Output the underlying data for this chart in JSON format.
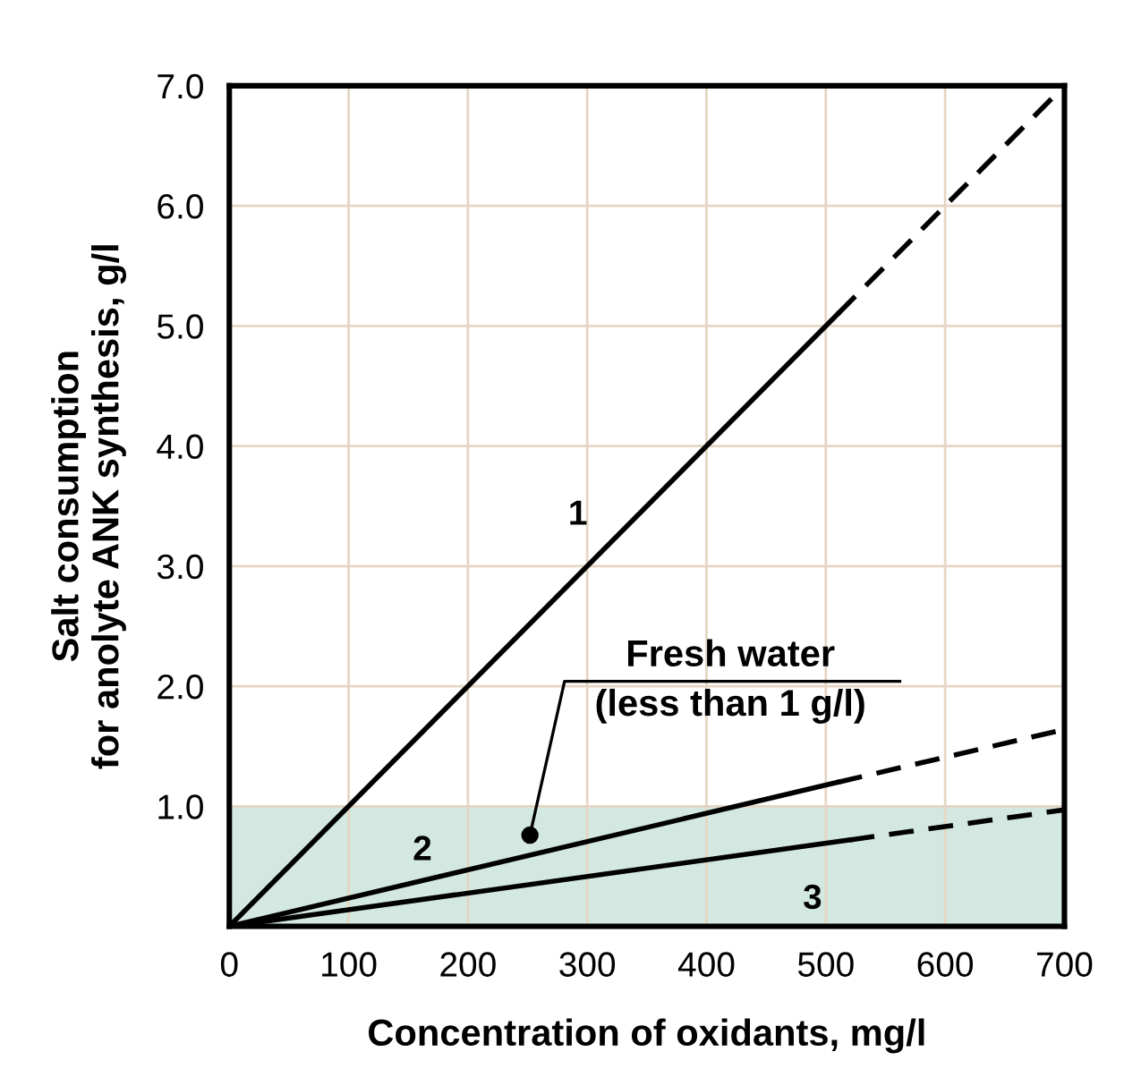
{
  "chart_data": {
    "type": "line",
    "xlabel": "Concentration of oxidants, mg/l",
    "ylabel": "Salt consumption\nfor anolyte ANK synthesis, g/l",
    "xlim": [
      0,
      700
    ],
    "ylim": [
      0,
      7
    ],
    "xticks": [
      0,
      100,
      200,
      300,
      400,
      500,
      600,
      700
    ],
    "yticks": [
      {
        "value": 1,
        "label": "1.0"
      },
      {
        "value": 2,
        "label": "2.0"
      },
      {
        "value": 3,
        "label": "3.0"
      },
      {
        "value": 4,
        "label": "4.0"
      },
      {
        "value": 5,
        "label": "5.0"
      },
      {
        "value": 6,
        "label": "6.0"
      },
      {
        "value": 7,
        "label": "7.0"
      }
    ],
    "grid": true,
    "marker": "none",
    "series": [
      {
        "name": "1",
        "x": [
          0,
          510
        ],
        "values": [
          0,
          5.1
        ],
        "color": "#000000",
        "line_style": "solid"
      },
      {
        "x": [
          510,
          700
        ],
        "values": [
          5.1,
          7.0
        ],
        "color": "#000000",
        "line_style": "dashed"
      },
      {
        "name": "2",
        "x": [
          0,
          510
        ],
        "values": [
          0,
          1.2
        ],
        "color": "#000000",
        "line_style": "solid"
      },
      {
        "x": [
          510,
          700
        ],
        "values": [
          1.2,
          1.64
        ],
        "color": "#000000",
        "line_style": "dashed"
      },
      {
        "name": "3",
        "x": [
          0,
          520
        ],
        "values": [
          0,
          0.72
        ],
        "color": "#000000",
        "line_style": "solid"
      },
      {
        "x": [
          520,
          700
        ],
        "values": [
          0.72,
          0.97
        ],
        "color": "#000000",
        "line_style": "dashed"
      }
    ],
    "bands": [
      {
        "axis": "y",
        "from": 0,
        "to": 1,
        "color": "#d3e8e0"
      }
    ],
    "annotations": [
      {
        "text": "Fresh water\n(less than 1 g/l)",
        "x": 252,
        "y": 0.76
      }
    ]
  }
}
